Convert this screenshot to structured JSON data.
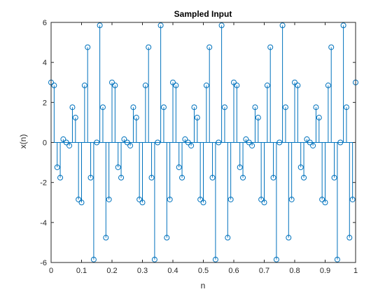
{
  "chart_data": {
    "type": "stem",
    "title": "Sampled Input",
    "xlabel": "n",
    "ylabel": "x(n)",
    "xlim": [
      0,
      1
    ],
    "ylim": [
      -6,
      6
    ],
    "xticks": [
      "0",
      "0.1",
      "0.2",
      "0.3",
      "0.4",
      "0.5",
      "0.6",
      "0.7",
      "0.8",
      "0.9",
      "1"
    ],
    "yticks": [
      "-6",
      "-4",
      "-2",
      "0",
      "2",
      "4",
      "6"
    ],
    "grid": false,
    "marker": "circle",
    "series": [
      {
        "color": "#0072bd",
        "x": [
          0.0,
          0.01,
          0.02,
          0.03,
          0.04,
          0.05,
          0.06,
          0.07,
          0.08,
          0.09,
          0.1,
          0.11,
          0.12,
          0.13,
          0.14,
          0.15,
          0.16,
          0.17,
          0.18,
          0.19,
          0.2,
          0.21,
          0.22,
          0.23,
          0.24,
          0.25,
          0.26,
          0.27,
          0.28,
          0.29,
          0.3,
          0.31,
          0.32,
          0.33,
          0.34,
          0.35,
          0.36,
          0.37,
          0.38,
          0.39,
          0.4,
          0.41,
          0.42,
          0.43,
          0.44,
          0.45,
          0.46,
          0.47,
          0.48,
          0.49,
          0.5,
          0.51,
          0.52,
          0.53,
          0.54,
          0.55,
          0.56,
          0.57,
          0.58,
          0.59,
          0.6,
          0.61,
          0.62,
          0.63,
          0.64,
          0.65,
          0.66,
          0.67,
          0.68,
          0.69,
          0.7,
          0.71,
          0.72,
          0.73,
          0.74,
          0.75,
          0.76,
          0.77,
          0.78,
          0.79,
          0.8,
          0.81,
          0.82,
          0.83,
          0.84,
          0.85,
          0.86,
          0.87,
          0.88,
          0.89,
          0.9,
          0.91,
          0.92,
          0.93,
          0.94,
          0.95,
          0.96,
          0.97,
          0.98,
          0.99,
          1.0
        ],
        "y": [
          3.0,
          2.85,
          -1.24,
          -1.76,
          0.16,
          0.0,
          -0.16,
          1.76,
          1.24,
          -2.85,
          -3.0,
          2.85,
          4.76,
          -1.76,
          -5.85,
          0.0,
          5.85,
          1.76,
          -4.76,
          -2.85,
          3.0,
          2.85,
          -1.24,
          -1.76,
          0.16,
          0.0,
          -0.16,
          1.76,
          1.24,
          -2.85,
          -3.0,
          2.85,
          4.76,
          -1.76,
          -5.85,
          0.0,
          5.85,
          1.76,
          -4.76,
          -2.85,
          3.0,
          2.85,
          -1.24,
          -1.76,
          0.16,
          0.0,
          -0.16,
          1.76,
          1.24,
          -2.85,
          -3.0,
          2.85,
          4.76,
          -1.76,
          -5.85,
          0.0,
          5.85,
          1.76,
          -4.76,
          -2.85,
          3.0,
          2.85,
          -1.24,
          -1.76,
          0.16,
          0.0,
          -0.16,
          1.76,
          1.24,
          -2.85,
          -3.0,
          2.85,
          4.76,
          -1.76,
          -5.85,
          0.0,
          5.85,
          1.76,
          -4.76,
          -2.85,
          3.0,
          2.85,
          -1.24,
          -1.76,
          0.16,
          0.0,
          -0.16,
          1.76,
          1.24,
          -2.85,
          -3.0,
          2.85,
          4.76,
          -1.76,
          -5.85,
          0.0,
          5.85,
          1.76,
          -4.76,
          -2.85,
          3.0
        ]
      }
    ]
  }
}
